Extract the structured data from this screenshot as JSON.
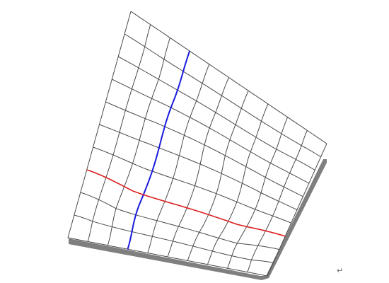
{
  "figure": {
    "grid_rows": 10,
    "grid_cols": 10,
    "colors": {
      "background": "#ffffff",
      "grid_line": "#4a4a4a",
      "shadow": "#7f7f7f",
      "blue_line": "#1a1adc",
      "red_line": "#dc2020"
    }
  },
  "paragraph_mark": "↵"
}
